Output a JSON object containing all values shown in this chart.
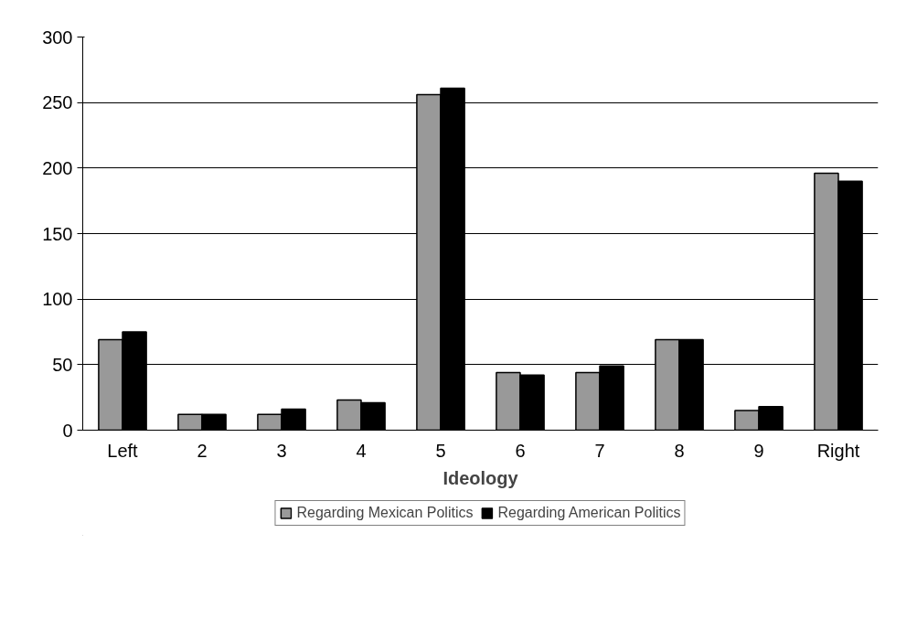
{
  "chart_data": {
    "type": "bar",
    "xlabel": "Ideology",
    "categories": [
      "Left",
      "2",
      "3",
      "4",
      "5",
      "6",
      "7",
      "8",
      "9",
      "Right"
    ],
    "series": [
      {
        "name": "Regarding Mexican Politics",
        "color": "#999999",
        "values": [
          69,
          12,
          12,
          23,
          256,
          44,
          44,
          69,
          15,
          196
        ]
      },
      {
        "name": "Regarding American Politics",
        "color": "#000000",
        "values": [
          75,
          12,
          16,
          21,
          261,
          42,
          49,
          69,
          18,
          190
        ]
      }
    ],
    "ylim": [
      0,
      300
    ],
    "yticks": [
      0,
      50,
      100,
      150,
      200,
      250,
      300
    ],
    "grid": "y",
    "legend": "bottom"
  }
}
